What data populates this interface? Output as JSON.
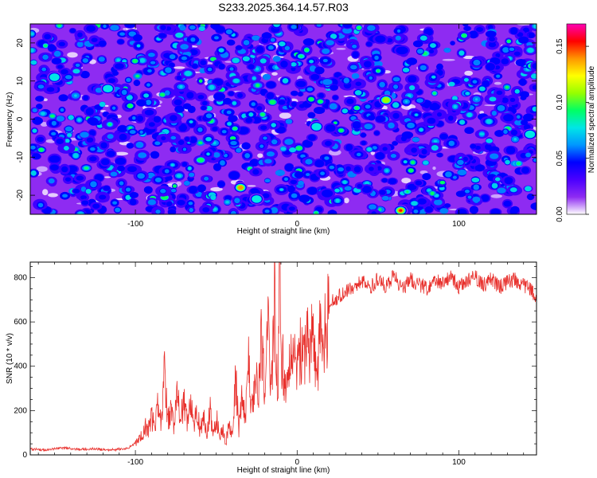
{
  "title": "S233.2025.364.14.57.R03",
  "colors": {
    "snr_line": "#e8302c",
    "spectrogram_background": "#8e2bf2",
    "frame": "#000000"
  },
  "chart_data": [
    {
      "type": "heatmap",
      "panel": "top",
      "xlabel": "Height of straight line (km)",
      "ylabel": "Frequency (Hz)",
      "xlim": [
        -165,
        148
      ],
      "ylim": [
        -25,
        25
      ],
      "xticks": [
        -100,
        0,
        100
      ],
      "xtick_labels": [
        "-100",
        "0",
        "100"
      ],
      "yticks": [
        -20,
        -10,
        0,
        10,
        20
      ],
      "ytick_labels": [
        "-20",
        "-10",
        "0",
        "10",
        "20"
      ],
      "colorbar": {
        "label": "Normalized spectral amplitude",
        "range": [
          0,
          0.17
        ],
        "ticks": [
          0,
          0.05,
          0.1,
          0.15
        ],
        "tick_labels": [
          "0.00",
          "0.05",
          "0.10",
          "0.15"
        ],
        "colormap": [
          "#ffffff",
          "#8e2bf2",
          "#4b00ff",
          "#0000ff",
          "#0096ff",
          "#00e6e6",
          "#00ff64",
          "#96ff00",
          "#ffff00",
          "#ff9600",
          "#ff0000",
          "#ff00b4"
        ]
      },
      "peaks": [
        {
          "x": -35,
          "y": -18,
          "value": 0.15
        },
        {
          "x": 64,
          "y": -24,
          "value": 0.16
        },
        {
          "x": 55,
          "y": 5,
          "value": 0.11
        },
        {
          "x": -117,
          "y": 8,
          "value": 0.1
        },
        {
          "x": -150,
          "y": 11,
          "value": 0.08
        },
        {
          "x": 12,
          "y": -2,
          "value": 0.08
        },
        {
          "x": 144,
          "y": -4,
          "value": 0.08
        },
        {
          "x": -25,
          "y": -21,
          "value": 0.08
        }
      ]
    },
    {
      "type": "line",
      "panel": "bottom",
      "xlabel": "Height of straight line (km)",
      "ylabel": "SNR (10 * v/v)",
      "xlim": [
        -165,
        148
      ],
      "ylim": [
        0,
        870
      ],
      "xticks": [
        -100,
        0,
        100
      ],
      "xtick_labels": [
        "-100",
        "0",
        "100"
      ],
      "yticks": [
        0,
        200,
        400,
        600,
        800
      ],
      "ytick_labels": [
        "0",
        "200",
        "400",
        "600",
        "800"
      ],
      "series": [
        {
          "name": "SNR",
          "x": [
            -165,
            -155,
            -145,
            -135,
            -125,
            -115,
            -105,
            -100,
            -97,
            -94,
            -92,
            -90,
            -88,
            -86,
            -84,
            -82,
            -80,
            -78,
            -76,
            -74,
            -72,
            -70,
            -68,
            -66,
            -64,
            -62,
            -60,
            -58,
            -56,
            -54,
            -52,
            -50,
            -48,
            -46,
            -44,
            -42,
            -40,
            -38,
            -36,
            -34,
            -32,
            -30,
            -28,
            -26,
            -24,
            -22,
            -20,
            -18,
            -16,
            -14,
            -12,
            -11,
            -10,
            -8,
            -6,
            -4,
            -2,
            0,
            2,
            4,
            6,
            8,
            10,
            12,
            14,
            16,
            18,
            20,
            22,
            25,
            30,
            35,
            40,
            45,
            50,
            55,
            60,
            65,
            70,
            75,
            80,
            85,
            90,
            95,
            100,
            105,
            110,
            115,
            120,
            125,
            130,
            135,
            140,
            145,
            148
          ],
          "values": [
            25,
            18,
            30,
            22,
            25,
            20,
            28,
            50,
            80,
            130,
            110,
            180,
            120,
            240,
            130,
            370,
            160,
            220,
            140,
            290,
            170,
            250,
            150,
            270,
            120,
            210,
            110,
            190,
            100,
            220,
            90,
            180,
            80,
            120,
            60,
            140,
            80,
            350,
            120,
            260,
            150,
            460,
            200,
            380,
            260,
            560,
            320,
            600,
            300,
            720,
            250,
            870,
            500,
            380,
            320,
            560,
            420,
            400,
            520,
            450,
            560,
            480,
            600,
            300,
            540,
            560,
            620,
            660,
            700,
            720,
            740,
            760,
            790,
            760,
            800,
            770,
            820,
            750,
            800,
            780,
            760,
            800,
            780,
            820,
            760,
            790,
            810,
            770,
            800,
            760,
            790,
            800,
            770,
            750,
            720
          ]
        }
      ]
    }
  ]
}
